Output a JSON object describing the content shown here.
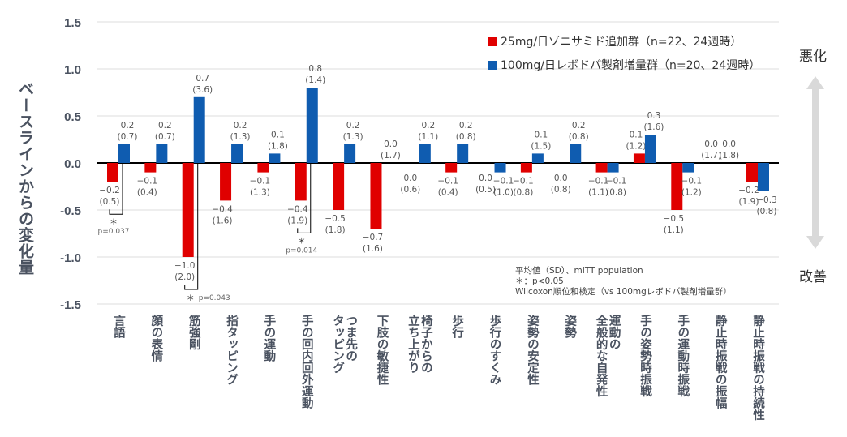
{
  "chart_data": {
    "type": "bar",
    "ylabel": "ベースラインからの変化量",
    "ylim": [
      -1.5,
      1.5
    ],
    "yticks": [
      "1.5",
      "1.0",
      "0.5",
      "0.0",
      "-0.5",
      "-1.0",
      "-1.5"
    ],
    "grid": true,
    "legend_position": "top-right",
    "categories": [
      "言語",
      "顔の表情",
      "筋強剛",
      "指タッピング",
      "手の運動",
      "手の回内回外運動",
      "つま先の\nタッピング",
      "下肢の敏捷性",
      "椅子からの\n立ち上がり",
      "歩行",
      "歩行のすくみ",
      "姿勢の安定性",
      "姿勢",
      "運動の\n全般的な自発性",
      "手の姿勢時振戦",
      "手の運動時振戦",
      "静止時振戦の振幅",
      "静止時振戦の持続性"
    ],
    "series": [
      {
        "name": "25mg/日ゾニサミド追加群（n=22、24週時）",
        "color": "#e00000",
        "values": [
          -0.2,
          -0.1,
          -1.0,
          -0.4,
          -0.1,
          -0.4,
          -0.5,
          -0.7,
          0.0,
          -0.1,
          0.0,
          -0.1,
          0.0,
          -0.1,
          0.1,
          -0.5,
          0.0,
          -0.2
        ],
        "sd": [
          "0.5",
          "0.4",
          "2.0",
          "1.6",
          "1.3",
          "1.9",
          "1.8",
          "1.6",
          "0.6",
          "0.4",
          "0.5",
          "0.8",
          "0.8",
          "1.1",
          "1.2",
          "1.1",
          "1.7",
          "1.9"
        ]
      },
      {
        "name": "100mg/日レボドパ製剤増量群（n=20、24週時）",
        "color": "#0f5cb0",
        "values": [
          0.2,
          0.2,
          0.7,
          0.2,
          0.1,
          0.8,
          0.2,
          0.0,
          0.2,
          0.2,
          -0.1,
          0.1,
          0.2,
          -0.1,
          0.3,
          -0.1,
          0.0,
          -0.3
        ],
        "sd": [
          "0.7",
          "0.7",
          "3.6",
          "1.3",
          "1.8",
          "1.4",
          "1.3",
          "1.7",
          "1.1",
          "0.8",
          "1.0",
          "1.5",
          "0.8",
          "0.8",
          "1.6",
          "1.2",
          "1.8",
          "0.8"
        ]
      }
    ],
    "significance": [
      {
        "category_index": 0,
        "mark": "＊",
        "p": "p=0.037"
      },
      {
        "category_index": 2,
        "mark": "＊",
        "p": "p=0.043"
      },
      {
        "category_index": 5,
        "mark": "＊",
        "p": "p=0.014"
      }
    ],
    "side_labels": {
      "worse": "悪化",
      "better": "改善"
    },
    "notes": [
      "平均値（SD）、mITT population",
      "＊：p<0.05",
      "Wilcoxon順位和検定（vs 100mgレボドパ製剤増量群）"
    ]
  }
}
